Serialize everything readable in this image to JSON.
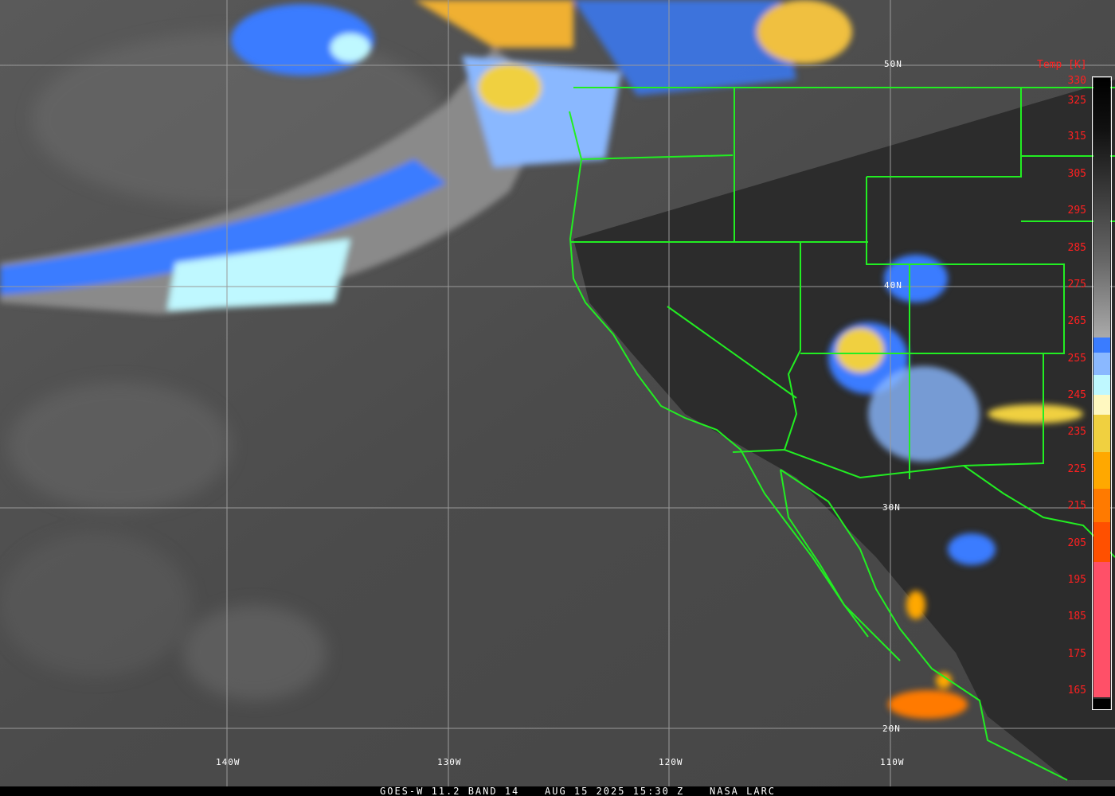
{
  "footer": {
    "satellite": "GOES-W 11.2 BAND 14",
    "datetime": "AUG 15 2025 15:30 Z",
    "credit": "NASA LARC"
  },
  "grid": {
    "latitudes": [
      "50N",
      "40N",
      "30N",
      "20N"
    ],
    "longitudes": [
      "140W",
      "130W",
      "120W",
      "110W"
    ]
  },
  "colorbar": {
    "title": "Temp [K]",
    "ticks": [
      "330",
      "325",
      "315",
      "305",
      "295",
      "285",
      "275",
      "265",
      "255",
      "245",
      "235",
      "225",
      "215",
      "205",
      "195",
      "185",
      "175",
      "165"
    ],
    "colors": {
      "cold_blue": "#3a7cff",
      "light_blue": "#8ab8ff",
      "cyan": "#bff8ff",
      "pale_yellow": "#fff8c0",
      "yellow": "#f0d040",
      "orange": "#ffa800",
      "dark_orange": "#ff7a00",
      "red_orange": "#ff5000",
      "pink": "#ff5068",
      "border_lines": "#22ee22"
    }
  }
}
